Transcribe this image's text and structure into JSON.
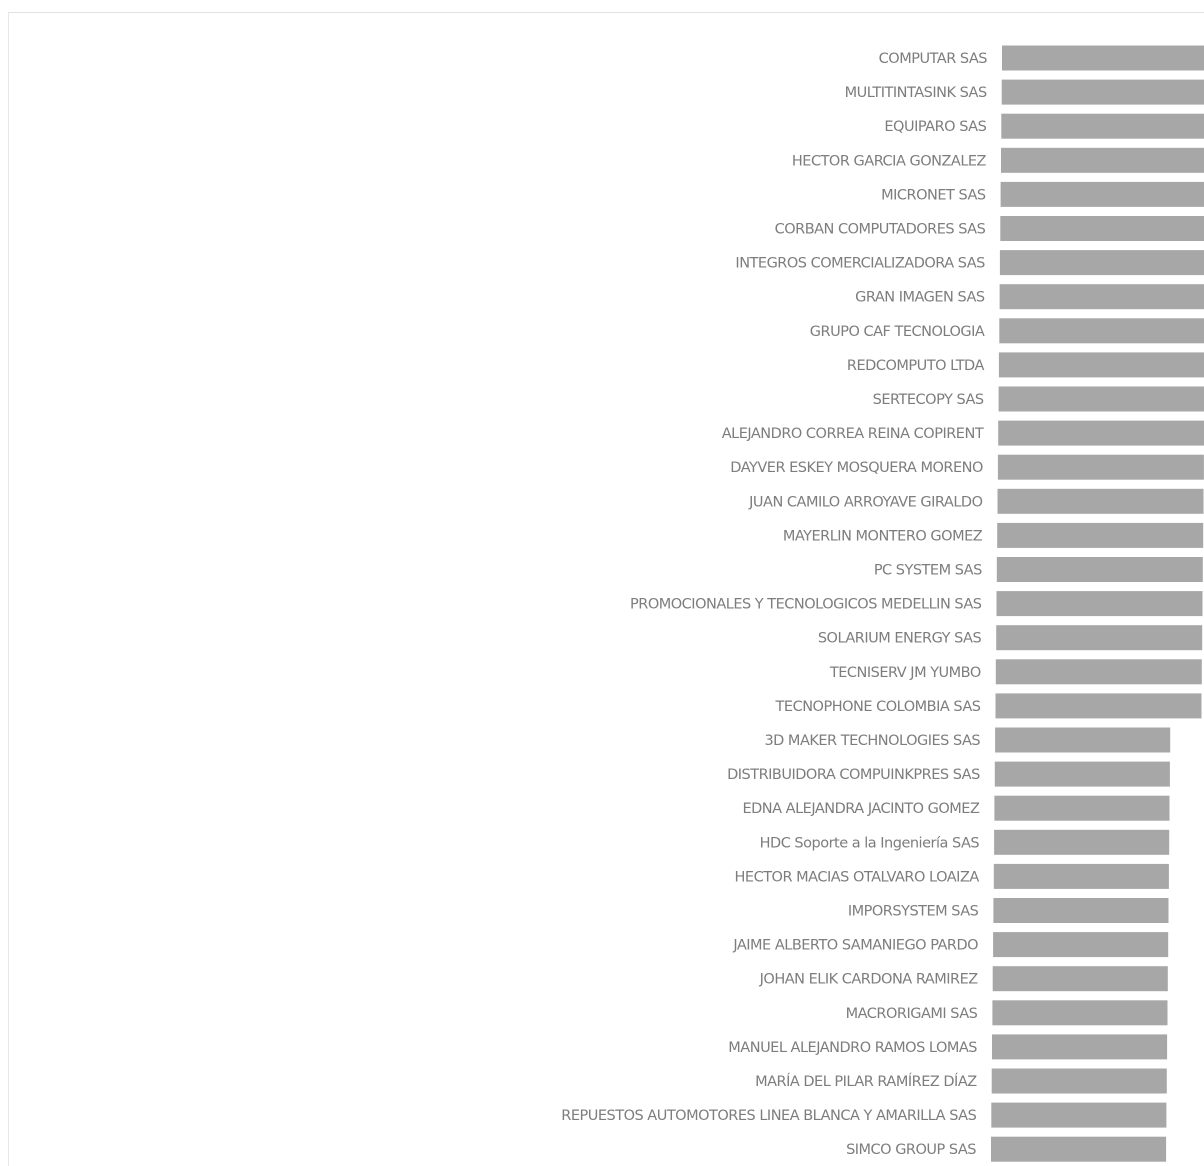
{
  "chart_data": {
    "type": "bar",
    "orientation": "horizontal",
    "title": "",
    "xlabel": "",
    "ylabel": "",
    "grid": false,
    "legend": "none",
    "bar_color": "#a7a7a7",
    "label_color": "#7d7d7d",
    "categories": [
      "COMPUTAR SAS",
      "MULTITINTASINK SAS",
      "EQUIPARO SAS",
      "HECTOR GARCIA GONZALEZ",
      "MICRONET SAS",
      "CORBAN COMPUTADORES SAS",
      "INTEGROS COMERCIALIZADORA SAS",
      "GRAN IMAGEN SAS",
      "GRUPO CAF TECNOLOGIA",
      "REDCOMPUTO LTDA",
      "SERTECOPY SAS",
      "ALEJANDRO CORREA REINA COPIRENT",
      "DAYVER ESKEY MOSQUERA MORENO",
      "JUAN CAMILO ARROYAVE GIRALDO",
      "MAYERLIN MONTERO GOMEZ",
      "PC SYSTEM SAS",
      "PROMOCIONALES Y TECNOLOGICOS MEDELLIN SAS",
      "SOLARIUM ENERGY SAS",
      "TECNISERV JM YUMBO",
      "TECNOPHONE COLOMBIA SAS",
      "3D MAKER TECHNOLOGIES SAS",
      "DISTRIBUIDORA COMPUINKPRES SAS",
      "EDNA ALEJANDRA JACINTO GOMEZ",
      "HDC Soporte a la Ingeniería SAS",
      "HECTOR MACIAS OTALVARO LOAIZA",
      "IMPORSYSTEM SAS",
      "JAIME ALBERTO SAMANIEGO PARDO",
      "JOHAN ELIK CARDONA RAMIREZ",
      "MACRORIGAMI SAS",
      "MANUEL ALEJANDRO RAMOS LOMAS",
      "MARÍA DEL PILAR RAMÍREZ DÍAZ",
      "REPUESTOS AUTOMOTORES LINEA BLANCA Y AMARILLA SAS",
      "SIMCO GROUP SAS"
    ],
    "values": [
      1,
      1,
      1,
      1,
      1,
      1,
      1,
      1,
      1,
      1,
      1,
      1,
      1,
      1,
      1,
      1,
      1,
      1,
      1,
      1,
      0.85,
      0.85,
      0.85,
      0.85,
      0.85,
      0.85,
      0.85,
      0.85,
      0.85,
      0.85,
      0.85,
      0.85,
      0.85
    ]
  }
}
